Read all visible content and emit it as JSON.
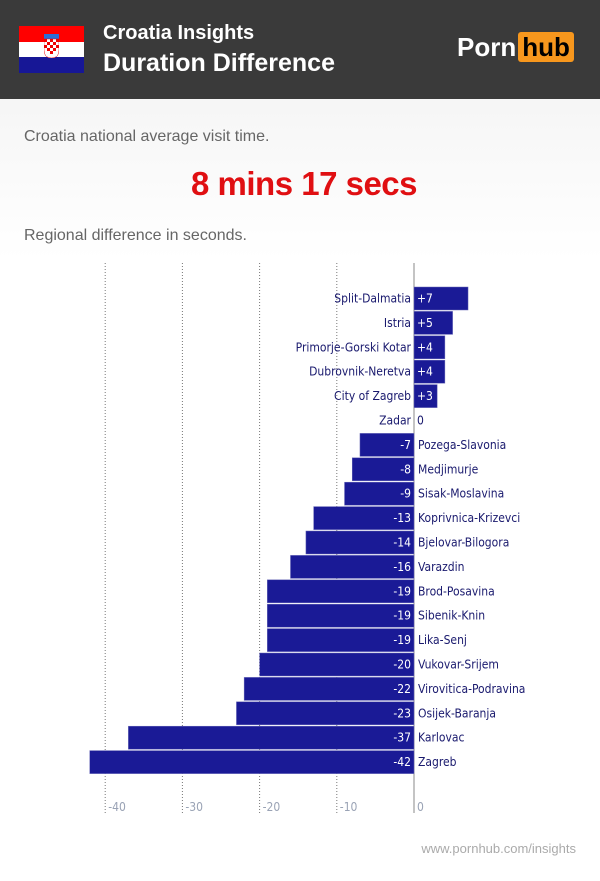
{
  "header": {
    "title": "Croatia Insights",
    "subtitle": "Duration Difference",
    "logo_left": "Porn",
    "logo_right": "hub",
    "flag_colors": [
      "#ff0000",
      "#ffffff",
      "#171796"
    ]
  },
  "intro": "Croatia national average visit time.",
  "average": "8 mins 17 secs",
  "chart_caption": "Regional difference in seconds.",
  "footer": "www.pornhub.com/insights",
  "chart_data": {
    "type": "bar",
    "orientation": "horizontal",
    "categories": [
      "Split-Dalmatia",
      "Istria",
      "Primorje-Gorski Kotar",
      "Dubrovnik-Neretva",
      "City of Zagreb",
      "Zadar",
      "Pozega-Slavonia",
      "Medjimurje",
      "Sisak-Moslavina",
      "Koprivnica-Krizevci",
      "Bjelovar-Bilogora",
      "Varazdin",
      "Brod-Posavina",
      "Sibenik-Knin",
      "Lika-Senj",
      "Vukovar-Srijem",
      "Virovitica-Podravina",
      "Osijek-Baranja",
      "Karlovac",
      "Zagreb"
    ],
    "values": [
      7,
      5,
      4,
      4,
      3,
      0,
      -7,
      -8,
      -9,
      -13,
      -14,
      -16,
      -19,
      -19,
      -19,
      -20,
      -22,
      -23,
      -37,
      -42
    ],
    "value_labels": [
      "+7",
      "+5",
      "+4",
      "+4",
      "+3",
      "0",
      "-7",
      "-8",
      "-9",
      "-13",
      "-14",
      "-16",
      "-19",
      "-19",
      "-19",
      "-20",
      "-22",
      "-23",
      "-37",
      "-42"
    ],
    "xlim": [
      -42,
      10
    ],
    "xticks": [
      -40,
      -30,
      -20,
      -10,
      0
    ],
    "xtick_labels": [
      "-40",
      "-30",
      "-20",
      "-10",
      "0"
    ],
    "grid": "vertical dotted",
    "bar_color": "#1a1a96"
  }
}
